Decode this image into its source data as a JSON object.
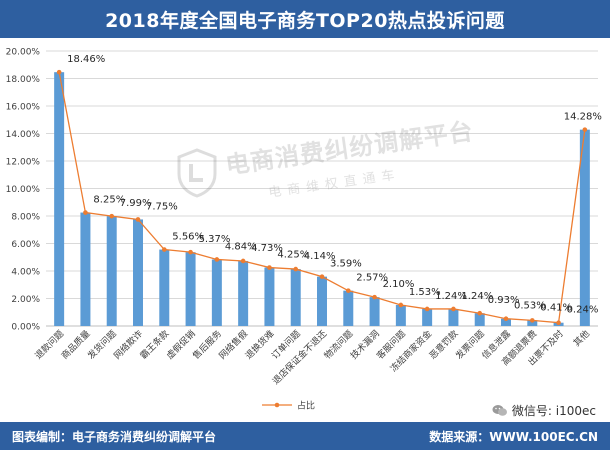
{
  "header": {
    "title": "2018年度全国电子商务TOP20热点投诉问题"
  },
  "footer": {
    "credit": "图表编制：电子商务消费纠纷调解平台",
    "source": "数据来源：WWW.100EC.CN"
  },
  "wechat": {
    "text": "微信号: i100ec"
  },
  "watermark": {
    "title": "电商消费纠纷调解平台",
    "subtitle": "电商维权直通车"
  },
  "colors": {
    "bar": "#5b9bd5",
    "line": "#ed7d31",
    "header": "#2e5fa0"
  },
  "chart_data": {
    "type": "bar",
    "title": "2018年度全国电子商务TOP20热点投诉问题",
    "categories": [
      "退款问题",
      "商品质量",
      "发货问题",
      "网络欺诈",
      "霸王条款",
      "虚假促销",
      "售后服务",
      "网络售假",
      "退换货难",
      "订单问题",
      "退店保证金不退还",
      "物流问题",
      "技术漏洞",
      "客服问题",
      "冻结商家资金",
      "恶意罚款",
      "发票问题",
      "信息泄露",
      "高额退票费",
      "出票不及时",
      "其他"
    ],
    "series": [
      {
        "name": "占比",
        "kind": "bar",
        "values": [
          18.46,
          8.25,
          7.99,
          7.75,
          5.56,
          5.37,
          4.84,
          4.73,
          4.25,
          4.14,
          3.59,
          2.57,
          2.1,
          1.53,
          1.24,
          1.24,
          0.93,
          0.53,
          0.41,
          0.24,
          14.28
        ]
      },
      {
        "name": "占比",
        "kind": "line",
        "values": [
          18.46,
          8.25,
          7.99,
          7.75,
          5.56,
          5.37,
          4.84,
          4.73,
          4.25,
          4.14,
          3.59,
          2.57,
          2.1,
          1.53,
          1.24,
          1.24,
          0.93,
          0.53,
          0.41,
          0.24,
          14.28
        ]
      }
    ],
    "data_labels": [
      "18.46%",
      "8.25%",
      "7.99%",
      "7.75%",
      "5.56%",
      "5.37%",
      "4.84%",
      "4.73%",
      "4.25%",
      "4.14%",
      "3.59%",
      "2.57%",
      "2.10%",
      "1.53%",
      "1.24%",
      "1.24%",
      "0.93%",
      "0.53%",
      "0.41%",
      "0.24%",
      "14.28%"
    ],
    "y_ticks": [
      "0.00%",
      "2.00%",
      "4.00%",
      "6.00%",
      "8.00%",
      "10.00%",
      "12.00%",
      "14.00%",
      "16.00%",
      "18.00%",
      "20.00%"
    ],
    "ylim": [
      0,
      20
    ],
    "legend": {
      "label": "占比",
      "placement": "bottom"
    },
    "xlabel": "",
    "ylabel": ""
  }
}
